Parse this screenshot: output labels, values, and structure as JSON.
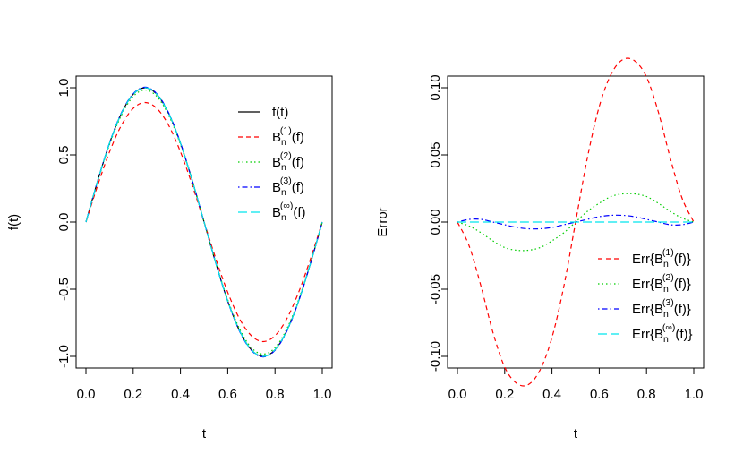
{
  "chart_data": [
    {
      "type": "line",
      "xlabel": "t",
      "ylabel": "f(t)",
      "xlim": [
        0,
        1
      ],
      "ylim": [
        -1.05,
        1.05
      ],
      "xticks": [
        "0.0",
        "0.2",
        "0.4",
        "0.6",
        "0.8",
        "1.0"
      ],
      "yticks": [
        "-1.0",
        "-0.5",
        "0.0",
        "0.5",
        "1.0"
      ],
      "legend_position": "top-right",
      "legend": [
        {
          "pre": "f(t)",
          "sup": "",
          "post": ""
        },
        {
          "pre": "B",
          "sub": "n",
          "sup": "(1)",
          "post": "(f)"
        },
        {
          "pre": "B",
          "sub": "n",
          "sup": "(2)",
          "post": "(f)"
        },
        {
          "pre": "B",
          "sub": "n",
          "sup": "(3)",
          "post": "(f)"
        },
        {
          "pre": "B",
          "sub": "n",
          "sup": "(∞)",
          "post": "(f)"
        }
      ],
      "series": [
        {
          "style": "solid",
          "color": "#000000",
          "x": [
            0,
            0.05,
            0.1,
            0.15,
            0.2,
            0.25,
            0.3,
            0.35,
            0.4,
            0.45,
            0.5,
            0.55,
            0.6,
            0.65,
            0.7,
            0.75,
            0.8,
            0.85,
            0.9,
            0.95,
            1
          ],
          "y": [
            0,
            0.309,
            0.588,
            0.809,
            0.951,
            1.0,
            0.951,
            0.809,
            0.588,
            0.309,
            0,
            -0.309,
            -0.588,
            -0.809,
            -0.951,
            -1.0,
            -0.951,
            -0.809,
            -0.588,
            -0.309,
            0
          ]
        },
        {
          "style": "dashed",
          "color": "#ff0000",
          "x": [
            0,
            0.05,
            0.1,
            0.15,
            0.2,
            0.25,
            0.3,
            0.35,
            0.4,
            0.45,
            0.5,
            0.55,
            0.6,
            0.65,
            0.7,
            0.75,
            0.8,
            0.85,
            0.9,
            0.95,
            1
          ],
          "y": [
            0,
            0.275,
            0.523,
            0.72,
            0.846,
            0.89,
            0.846,
            0.72,
            0.523,
            0.275,
            0,
            -0.275,
            -0.523,
            -0.72,
            -0.846,
            -0.89,
            -0.846,
            -0.72,
            -0.523,
            -0.275,
            0
          ]
        },
        {
          "style": "dotted",
          "color": "#00cd00",
          "x": [
            0,
            0.05,
            0.1,
            0.15,
            0.2,
            0.25,
            0.3,
            0.35,
            0.4,
            0.45,
            0.5,
            0.55,
            0.6,
            0.65,
            0.7,
            0.75,
            0.8,
            0.85,
            0.9,
            0.95,
            1
          ],
          "y": [
            0,
            0.304,
            0.578,
            0.795,
            0.935,
            0.983,
            0.935,
            0.795,
            0.578,
            0.304,
            0,
            -0.304,
            -0.578,
            -0.795,
            -0.935,
            -0.983,
            -0.935,
            -0.795,
            -0.578,
            -0.304,
            0
          ]
        },
        {
          "style": "dotdash",
          "color": "#0000ff",
          "x": [
            0,
            0.05,
            0.1,
            0.15,
            0.2,
            0.25,
            0.3,
            0.35,
            0.4,
            0.45,
            0.5,
            0.55,
            0.6,
            0.65,
            0.7,
            0.75,
            0.8,
            0.85,
            0.9,
            0.95,
            1
          ],
          "y": [
            0,
            0.309,
            0.59,
            0.813,
            0.955,
            1.004,
            0.955,
            0.813,
            0.59,
            0.309,
            0,
            -0.309,
            -0.59,
            -0.813,
            -0.955,
            -1.004,
            -0.955,
            -0.813,
            -0.59,
            -0.309,
            0
          ]
        },
        {
          "style": "longdash",
          "color": "#00e5ee",
          "x": [
            0,
            0.05,
            0.1,
            0.15,
            0.2,
            0.25,
            0.3,
            0.35,
            0.4,
            0.45,
            0.5,
            0.55,
            0.6,
            0.65,
            0.7,
            0.75,
            0.8,
            0.85,
            0.9,
            0.95,
            1
          ],
          "y": [
            0,
            0.309,
            0.588,
            0.809,
            0.951,
            1.0,
            0.951,
            0.809,
            0.588,
            0.309,
            0,
            -0.309,
            -0.588,
            -0.809,
            -0.951,
            -1.0,
            -0.951,
            -0.809,
            -0.588,
            -0.309,
            0
          ]
        }
      ]
    },
    {
      "type": "line",
      "xlabel": "t",
      "ylabel": "Error",
      "xlim": [
        0,
        1
      ],
      "ylim": [
        -0.13,
        0.13
      ],
      "xticks": [
        "0.0",
        "0.2",
        "0.4",
        "0.6",
        "0.8",
        "1.0"
      ],
      "yticks": [
        "-0.10",
        "-0.05",
        "0.00",
        "0.05",
        "0.10"
      ],
      "legend_position": "bottom-right",
      "legend": [
        {
          "pre": "Err{B",
          "sub": "n",
          "sup": "(1)",
          "post": "(f)}"
        },
        {
          "pre": "Err{B",
          "sub": "n",
          "sup": "(2)",
          "post": "(f)}"
        },
        {
          "pre": "Err{B",
          "sub": "n",
          "sup": "(3)",
          "post": "(f)}"
        },
        {
          "pre": "Err{B",
          "sub": "n",
          "sup": "(∞)",
          "post": "(f)}"
        }
      ],
      "series": [
        {
          "style": "dashed",
          "color": "#ff0000",
          "x": [
            0,
            0.05,
            0.1,
            0.15,
            0.2,
            0.25,
            0.3,
            0.35,
            0.4,
            0.45,
            0.5,
            0.55,
            0.6,
            0.65,
            0.7,
            0.75,
            0.8,
            0.85,
            0.9,
            0.95,
            1
          ],
          "y": [
            0,
            -0.018,
            -0.048,
            -0.082,
            -0.108,
            -0.12,
            -0.121,
            -0.11,
            -0.086,
            -0.048,
            0,
            0.048,
            0.086,
            0.11,
            0.121,
            0.12,
            0.108,
            0.082,
            0.048,
            0.018,
            0
          ]
        },
        {
          "style": "dotted",
          "color": "#00cd00",
          "x": [
            0,
            0.05,
            0.1,
            0.15,
            0.2,
            0.25,
            0.3,
            0.35,
            0.4,
            0.45,
            0.5,
            0.55,
            0.6,
            0.65,
            0.7,
            0.75,
            0.8,
            0.85,
            0.9,
            0.95,
            1
          ],
          "y": [
            0,
            -0.003,
            -0.008,
            -0.014,
            -0.019,
            -0.021,
            -0.021,
            -0.019,
            -0.014,
            -0.008,
            0,
            0.008,
            0.014,
            0.019,
            0.021,
            0.021,
            0.019,
            0.014,
            0.008,
            0.003,
            0
          ]
        },
        {
          "style": "dotdash",
          "color": "#0000ff",
          "x": [
            0,
            0.05,
            0.1,
            0.15,
            0.2,
            0.25,
            0.3,
            0.35,
            0.4,
            0.45,
            0.5,
            0.55,
            0.6,
            0.65,
            0.7,
            0.75,
            0.8,
            0.85,
            0.9,
            0.95,
            1
          ],
          "y": [
            0,
            0.002,
            0.002,
            0,
            -0.002,
            -0.004,
            -0.005,
            -0.005,
            -0.004,
            -0.002,
            0,
            0.002,
            0.004,
            0.005,
            0.005,
            0.004,
            0.002,
            0,
            -0.002,
            -0.002,
            0
          ]
        },
        {
          "style": "longdash",
          "color": "#00e5ee",
          "x": [
            0,
            1
          ],
          "y": [
            0,
            0
          ]
        }
      ]
    }
  ]
}
